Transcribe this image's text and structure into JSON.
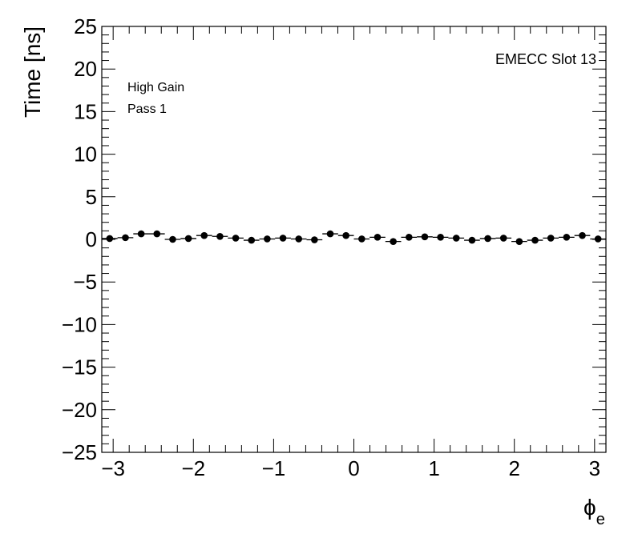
{
  "chart_data": {
    "type": "scatter",
    "title": "",
    "xlabel": "φ_e",
    "xlabel_main": "ϕ",
    "xlabel_sub": "e",
    "ylabel": "Time [ns]",
    "xlim": [
      -3.1416,
      3.1416
    ],
    "ylim": [
      -25,
      25
    ],
    "x_ticks": [
      -3,
      -2,
      -1,
      0,
      1,
      2,
      3
    ],
    "x_tick_labels": [
      "−3",
      "−2",
      "−1",
      "0",
      "1",
      "2",
      "3"
    ],
    "y_ticks": [
      25,
      20,
      15,
      10,
      5,
      0,
      -5,
      -10,
      -15,
      -20,
      -25
    ],
    "y_tick_labels": [
      "25",
      "20",
      "15",
      "10",
      "5",
      "0",
      "−5",
      "−10",
      "−15",
      "−20",
      "−25"
    ],
    "annotations": {
      "top_right": "EMECC Slot 13",
      "line1": "High Gain",
      "line2": "Pass 1"
    },
    "grid": false,
    "bin_half_width": 0.0982,
    "points": [
      {
        "x": -3.0434,
        "y": 0.1
      },
      {
        "x": -2.8471,
        "y": 0.2
      },
      {
        "x": -2.6507,
        "y": 0.65
      },
      {
        "x": -2.4544,
        "y": 0.65
      },
      {
        "x": -2.258,
        "y": 0.0
      },
      {
        "x": -2.0617,
        "y": 0.1
      },
      {
        "x": -1.8653,
        "y": 0.45
      },
      {
        "x": -1.669,
        "y": 0.35
      },
      {
        "x": -1.4726,
        "y": 0.15
      },
      {
        "x": -1.2763,
        "y": -0.1
      },
      {
        "x": -1.0799,
        "y": 0.05
      },
      {
        "x": -0.8836,
        "y": 0.15
      },
      {
        "x": -0.6872,
        "y": 0.05
      },
      {
        "x": -0.4909,
        "y": -0.05
      },
      {
        "x": -0.2945,
        "y": 0.65
      },
      {
        "x": -0.0982,
        "y": 0.45
      },
      {
        "x": 0.0982,
        "y": 0.05
      },
      {
        "x": 0.2945,
        "y": 0.25
      },
      {
        "x": 0.4909,
        "y": -0.25
      },
      {
        "x": 0.6872,
        "y": 0.25
      },
      {
        "x": 0.8836,
        "y": 0.3
      },
      {
        "x": 1.0799,
        "y": 0.25
      },
      {
        "x": 1.2763,
        "y": 0.15
      },
      {
        "x": 1.4726,
        "y": -0.1
      },
      {
        "x": 1.669,
        "y": 0.1
      },
      {
        "x": 1.8653,
        "y": 0.15
      },
      {
        "x": 2.0617,
        "y": -0.25
      },
      {
        "x": 2.258,
        "y": -0.1
      },
      {
        "x": 2.4544,
        "y": 0.15
      },
      {
        "x": 2.6507,
        "y": 0.25
      },
      {
        "x": 2.8471,
        "y": 0.45
      },
      {
        "x": 3.0434,
        "y": 0.05
      }
    ]
  }
}
